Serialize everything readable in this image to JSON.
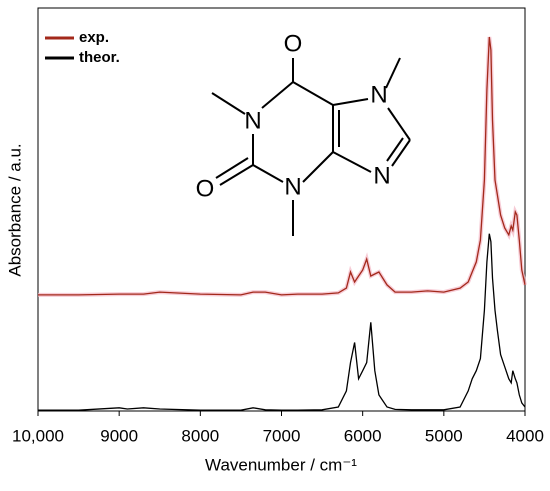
{
  "chart_data": {
    "type": "line",
    "xlabel": "Wavenumber / cm⁻¹",
    "ylabel": "Absorbance / a.u.",
    "x": [
      10000,
      9500,
      9000,
      8900,
      8700,
      8500,
      8000,
      7500,
      7350,
      7200,
      7000,
      6800,
      6500,
      6300,
      6200,
      6150,
      6100,
      6050,
      6000,
      5950,
      5900,
      5850,
      5800,
      5700,
      5600,
      5400,
      5200,
      5000,
      4800,
      4700,
      4650,
      4600,
      4550,
      4500,
      4470,
      4440,
      4420,
      4400,
      4370,
      4340,
      4300,
      4250,
      4200,
      4170,
      4150,
      4120,
      4100,
      4070,
      4040,
      4000
    ],
    "series": [
      {
        "name": "exp.",
        "color": "#a3291b",
        "values": [
          0.288,
          0.288,
          0.29,
          0.29,
          0.29,
          0.295,
          0.29,
          0.288,
          0.295,
          0.295,
          0.288,
          0.29,
          0.29,
          0.293,
          0.305,
          0.345,
          0.32,
          0.335,
          0.35,
          0.377,
          0.335,
          0.34,
          0.345,
          0.313,
          0.295,
          0.295,
          0.298,
          0.295,
          0.305,
          0.32,
          0.345,
          0.37,
          0.424,
          0.573,
          0.797,
          0.928,
          0.896,
          0.722,
          0.573,
          0.536,
          0.486,
          0.454,
          0.437,
          0.459,
          0.449,
          0.494,
          0.486,
          0.424,
          0.35,
          0.313
        ]
      },
      {
        "name": "theor.",
        "color": "#000000",
        "values": [
          0.002,
          0.002,
          0.008,
          0.005,
          0.008,
          0.005,
          0.002,
          0.002,
          0.008,
          0.003,
          0.002,
          0.002,
          0.003,
          0.01,
          0.05,
          0.12,
          0.17,
          0.08,
          0.1,
          0.12,
          0.22,
          0.1,
          0.04,
          0.01,
          0.004,
          0.003,
          0.003,
          0.003,
          0.01,
          0.05,
          0.08,
          0.1,
          0.13,
          0.25,
          0.37,
          0.44,
          0.42,
          0.33,
          0.25,
          0.2,
          0.14,
          0.11,
          0.08,
          0.07,
          0.1,
          0.08,
          0.07,
          0.04,
          0.02,
          0.01
        ]
      }
    ],
    "xlim": [
      10000,
      4000
    ],
    "xticks": [
      {
        "value": 10000,
        "label": "10,000"
      },
      9000,
      8000,
      7000,
      6000,
      5000,
      4000
    ],
    "ylim": [
      0,
      1
    ],
    "legend": "upper left",
    "structure_labels": [
      "O",
      "N",
      "N",
      "O",
      "N",
      "N"
    ]
  }
}
